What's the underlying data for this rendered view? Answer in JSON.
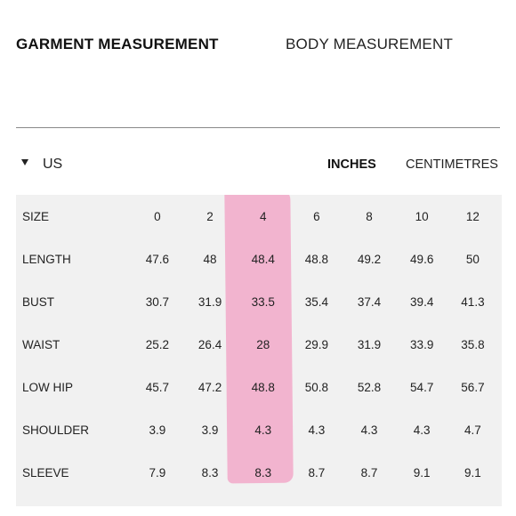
{
  "tabs": {
    "garment_label": "GARMENT MEASUREMENT",
    "body_label": "BODY MEASUREMENT"
  },
  "region": {
    "label": "US",
    "icon": "caret-down-icon"
  },
  "units": {
    "inches_label": "INCHES",
    "centimetres_label": "CENTIMETRES"
  },
  "colors": {
    "highlight": "#f2a9c9",
    "table_background": "#f1f1f1"
  },
  "table": {
    "rows": [
      {
        "label": "SIZE",
        "values": [
          "0",
          "2",
          "4",
          "6",
          "8",
          "10",
          "12"
        ]
      },
      {
        "label": "LENGTH",
        "values": [
          "47.6",
          "48",
          "48.4",
          "48.8",
          "49.2",
          "49.6",
          "50"
        ]
      },
      {
        "label": "BUST",
        "values": [
          "30.7",
          "31.9",
          "33.5",
          "35.4",
          "37.4",
          "39.4",
          "41.3"
        ]
      },
      {
        "label": "WAIST",
        "values": [
          "25.2",
          "26.4",
          "28",
          "29.9",
          "31.9",
          "33.9",
          "35.8"
        ]
      },
      {
        "label": "LOW HIP",
        "values": [
          "45.7",
          "47.2",
          "48.8",
          "50.8",
          "52.8",
          "54.7",
          "56.7"
        ]
      },
      {
        "label": "SHOULDER",
        "values": [
          "3.9",
          "3.9",
          "4.3",
          "4.3",
          "4.3",
          "4.3",
          "4.7"
        ]
      },
      {
        "label": "SLEEVE",
        "values": [
          "7.9",
          "8.3",
          "8.3",
          "8.7",
          "8.7",
          "9.1",
          "9.1"
        ]
      }
    ]
  }
}
